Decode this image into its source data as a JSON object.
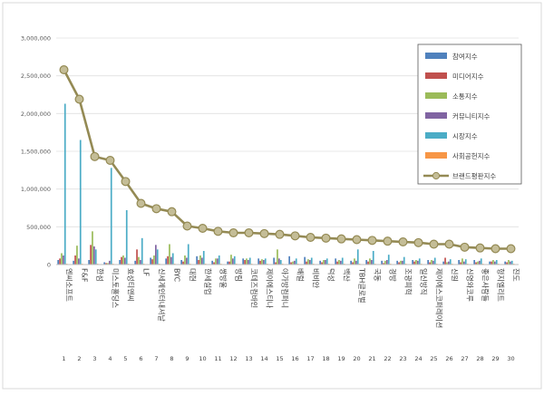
{
  "chart_data": {
    "type": "bar",
    "categories": [
      "엔씨소프트",
      "F&F",
      "한섬",
      "미스토홀딩스",
      "효성티앤씨",
      "LF",
      "신세계인터내셔날",
      "BYC",
      "대현",
      "한세실업",
      "쌍방울",
      "방림",
      "코데즈컴바인",
      "제이에스티나",
      "아가방컴퍼니",
      "배럴",
      "비비안",
      "덕성",
      "백산",
      "TBH글로벌",
      "국동",
      "경방",
      "조광피혁",
      "일신방직",
      "제이에스코퍼레이션",
      "신원",
      "신영와코루",
      "좋은사람들",
      "형지엘리트",
      "진도"
    ],
    "ranks": [
      "1",
      "2",
      "3",
      "4",
      "5",
      "6",
      "7",
      "8",
      "9",
      "10",
      "11",
      "12",
      "13",
      "14",
      "15",
      "16",
      "17",
      "18",
      "19",
      "20",
      "21",
      "22",
      "23",
      "24",
      "25",
      "26",
      "27",
      "28",
      "29",
      "30"
    ],
    "ylim": [
      0,
      3000000
    ],
    "yticks": [
      0,
      500000,
      1000000,
      1500000,
      2000000,
      2500000,
      3000000
    ],
    "ytick_labels": [
      "0",
      "500,000",
      "1,000,000",
      "1,500,000",
      "2,000,000",
      "2,500,000",
      "3,000,000"
    ],
    "series": [
      {
        "name": "참여지수",
        "color": "#4f81bd",
        "kind": "bar",
        "values": [
          60000,
          50000,
          60000,
          30000,
          60000,
          50000,
          90000,
          80000,
          60000,
          110000,
          50000,
          40000,
          80000,
          80000,
          90000,
          110000,
          100000,
          50000,
          80000,
          50000,
          60000,
          50000,
          50000,
          60000,
          60000,
          40000,
          60000,
          60000,
          40000,
          40000
        ]
      },
      {
        "name": "미디어지수",
        "color": "#c0504d",
        "kind": "bar",
        "values": [
          80000,
          120000,
          260000,
          20000,
          100000,
          200000,
          70000,
          110000,
          40000,
          60000,
          30000,
          40000,
          60000,
          50000,
          30000,
          30000,
          40000,
          30000,
          40000,
          30000,
          40000,
          20000,
          30000,
          40000,
          30000,
          90000,
          30000,
          30000,
          40000,
          30000
        ]
      },
      {
        "name": "소통지수",
        "color": "#9bbb59",
        "kind": "bar",
        "values": [
          150000,
          250000,
          440000,
          20000,
          120000,
          100000,
          120000,
          270000,
          120000,
          120000,
          80000,
          130000,
          80000,
          70000,
          200000,
          40000,
          70000,
          60000,
          60000,
          80000,
          80000,
          50000,
          50000,
          60000,
          60000,
          30000,
          80000,
          40000,
          60000,
          60000
        ]
      },
      {
        "name": "커뮤니티지수",
        "color": "#8064a2",
        "kind": "bar",
        "values": [
          120000,
          80000,
          240000,
          50000,
          90000,
          60000,
          260000,
          100000,
          90000,
          90000,
          80000,
          80000,
          60000,
          60000,
          80000,
          50000,
          60000,
          60000,
          50000,
          50000,
          60000,
          60000,
          50000,
          50000,
          50000,
          40000,
          40000,
          50000,
          40000,
          40000
        ]
      },
      {
        "name": "시장지수",
        "color": "#4bacc6",
        "kind": "bar",
        "values": [
          2130000,
          1650000,
          200000,
          1280000,
          720000,
          350000,
          200000,
          150000,
          270000,
          180000,
          120000,
          110000,
          90000,
          80000,
          60000,
          80000,
          90000,
          80000,
          90000,
          200000,
          180000,
          130000,
          100000,
          80000,
          90000,
          70000,
          70000,
          80000,
          60000,
          50000
        ]
      },
      {
        "name": "사회공헌지수",
        "color": "#f79646",
        "kind": "bar",
        "values": [
          10000,
          10000,
          10000,
          10000,
          10000,
          10000,
          10000,
          10000,
          10000,
          10000,
          10000,
          10000,
          10000,
          10000,
          10000,
          10000,
          10000,
          10000,
          10000,
          10000,
          10000,
          10000,
          10000,
          10000,
          10000,
          10000,
          10000,
          10000,
          10000,
          10000
        ]
      },
      {
        "name": "브랜드평판지수",
        "color": "#948a54",
        "kind": "line",
        "values": [
          2580000,
          2190000,
          1430000,
          1380000,
          1100000,
          810000,
          740000,
          700000,
          510000,
          480000,
          440000,
          420000,
          420000,
          410000,
          400000,
          380000,
          360000,
          350000,
          340000,
          330000,
          320000,
          310000,
          300000,
          290000,
          270000,
          270000,
          230000,
          220000,
          210000,
          210000
        ]
      }
    ]
  }
}
